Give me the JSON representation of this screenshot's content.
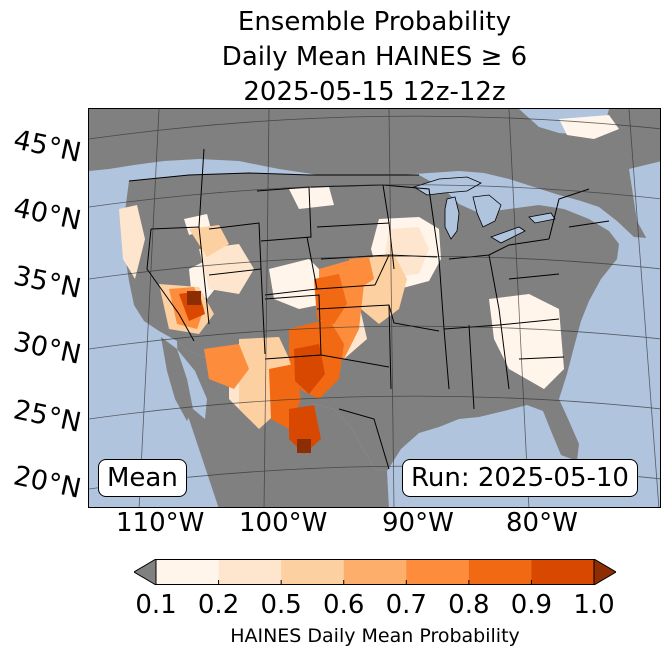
{
  "title": {
    "line1": "Ensemble Probability",
    "line2": "Daily Mean HAINES ≥ 6",
    "line3": "2025-05-15 12z-12z"
  },
  "map": {
    "ocean_color": "#b0c4de",
    "land_color": "#808080",
    "lat_labels": [
      "45°N",
      "40°N",
      "35°N",
      "30°N",
      "25°N",
      "20°N"
    ],
    "lon_labels": [
      "110°W",
      "100°W",
      "90°W",
      "80°W"
    ],
    "left_box": "Mean",
    "right_box": "Run: 2025-05-10"
  },
  "colorbar": {
    "ticks": [
      "0.1",
      "0.2",
      "0.5",
      "0.6",
      "0.7",
      "0.8",
      "0.9",
      "1.0"
    ],
    "colors": [
      "#fff5eb",
      "#fee6ce",
      "#fdd0a2",
      "#fdae6b",
      "#fd8d3c",
      "#f16913",
      "#d94801",
      "#8c2d04"
    ],
    "under_color": "#808080",
    "label": "HAINES Daily Mean Probability"
  }
}
